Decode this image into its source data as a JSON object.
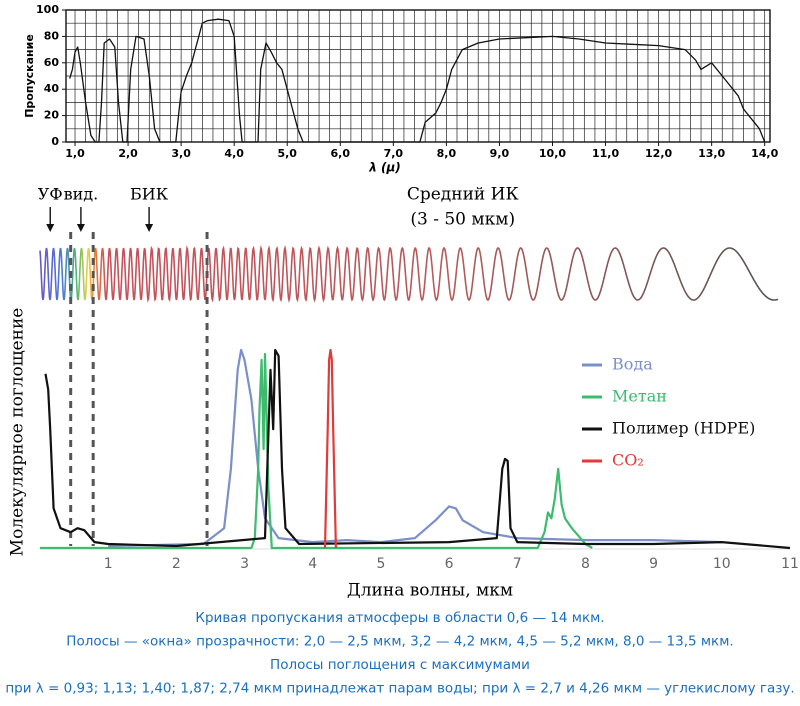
{
  "chart_data": [
    {
      "type": "line",
      "ylabel": "Пропускание",
      "xlabel": "λ (μ)",
      "xlim": [
        0.83,
        14.1
      ],
      "ylim": [
        0,
        100
      ],
      "xticks": [
        {
          "value": 1,
          "label": "1,0"
        },
        {
          "value": 2,
          "label": "2,0"
        },
        {
          "value": 3,
          "label": "3,0"
        },
        {
          "value": 4,
          "label": "4,0"
        },
        {
          "value": 5,
          "label": "5,0"
        },
        {
          "value": 6,
          "label": "6,0"
        },
        {
          "value": 7,
          "label": "7,0"
        },
        {
          "value": 8,
          "label": "8,0"
        },
        {
          "value": 9,
          "label": "9,0"
        },
        {
          "value": 10,
          "label": "10,0"
        },
        {
          "value": 11,
          "label": "11,0"
        },
        {
          "value": 12,
          "label": "12,0"
        },
        {
          "value": 13,
          "label": "13,0"
        },
        {
          "value": 14,
          "label": "14,0"
        }
      ],
      "yticks": [
        0,
        20,
        40,
        60,
        80,
        100
      ],
      "grid": true,
      "grid_step": {
        "x": 0.2,
        "y": 10
      },
      "series": [
        {
          "color": "#111111",
          "x": [
            0.9,
            0.95,
            1.0,
            1.05,
            1.1,
            1.2,
            1.3,
            1.38,
            1.45,
            1.5,
            1.55,
            1.65,
            1.75,
            1.82,
            1.9,
            1.98,
            2.05,
            2.15,
            2.3,
            2.4,
            2.5,
            2.6,
            2.9,
            2.95,
            3.0,
            3.1,
            3.2,
            3.3,
            3.4,
            3.5,
            3.7,
            3.9,
            4.0,
            4.1,
            4.15,
            4.45,
            4.5,
            4.6,
            4.7,
            4.8,
            4.9,
            5.0,
            5.1,
            5.2,
            5.3,
            7.5,
            7.6,
            7.8,
            7.9,
            8.0,
            8.1,
            8.3,
            8.6,
            9.0,
            9.5,
            10.0,
            10.5,
            11.0,
            11.5,
            12.0,
            12.5,
            12.7,
            12.8,
            13.0,
            13.2,
            13.3,
            13.5,
            13.6,
            13.8,
            13.9,
            14.0
          ],
          "values": [
            48,
            55,
            68,
            72,
            60,
            30,
            5,
            0,
            0,
            30,
            75,
            78,
            72,
            30,
            0,
            0,
            55,
            80,
            78,
            50,
            10,
            0,
            0,
            20,
            38,
            50,
            60,
            75,
            90,
            92,
            93,
            92,
            80,
            20,
            0,
            0,
            55,
            75,
            68,
            60,
            55,
            40,
            25,
            10,
            0,
            0,
            15,
            22,
            30,
            40,
            55,
            70,
            75,
            78,
            79,
            80,
            78,
            75,
            74,
            73,
            70,
            62,
            55,
            60,
            50,
            45,
            35,
            25,
            15,
            10,
            0
          ]
        }
      ]
    },
    {
      "type": "line",
      "ylabel": "Молекулярное поглощение",
      "xlabel": "Длина волны, мкм",
      "xlim": [
        0,
        11
      ],
      "ylim": [
        0,
        100
      ],
      "xticks": [
        1,
        2,
        3,
        4,
        5,
        6,
        7,
        8,
        9,
        10,
        11
      ],
      "legend": "upper right",
      "annotations": [
        {
          "text": "УФ",
          "x": 0.15
        },
        {
          "text": "вид.",
          "x": 0.6
        },
        {
          "text": "БИК",
          "x": 1.6
        },
        {
          "text": "Средний ИК",
          "x": 6.2
        },
        {
          "text": "(3 - 50 мкм)",
          "x": 6.2
        }
      ],
      "boundaries": [
        0.45,
        0.78,
        2.45
      ],
      "series": [
        {
          "name": "Вода",
          "color": "#7b8fc8",
          "x": [
            1.0,
            2.4,
            2.7,
            2.8,
            2.9,
            2.95,
            3.0,
            3.1,
            3.2,
            3.3,
            3.5,
            4.0,
            4.5,
            5.0,
            5.5,
            5.8,
            6.0,
            6.1,
            6.2,
            6.5,
            7.0,
            8.0,
            9.0,
            10.0
          ],
          "values": [
            1,
            2,
            10,
            40,
            90,
            100,
            95,
            75,
            40,
            15,
            5,
            3,
            4,
            3,
            5,
            14,
            21,
            20,
            14,
            8,
            5,
            4,
            4,
            3
          ]
        },
        {
          "name": "Метан",
          "color": "#3dbb6e",
          "x": [
            0.0,
            3.1,
            3.15,
            3.2,
            3.22,
            3.25,
            3.28,
            3.3,
            3.35,
            3.4,
            7.3,
            7.4,
            7.45,
            7.5,
            7.55,
            7.6,
            7.65,
            7.7,
            7.8,
            8.0,
            8.1
          ],
          "values": [
            0,
            0,
            5,
            40,
            70,
            95,
            50,
            98,
            30,
            0,
            0,
            8,
            18,
            15,
            25,
            40,
            22,
            15,
            10,
            2,
            0
          ]
        },
        {
          "name": "Полимер (HDPE)",
          "color": "#111111",
          "x": [
            0.08,
            0.12,
            0.15,
            0.2,
            0.3,
            0.45,
            0.55,
            0.65,
            0.8,
            1.0,
            2.0,
            3.3,
            3.38,
            3.42,
            3.45,
            3.5,
            3.55,
            3.6,
            3.8,
            6.0,
            6.7,
            6.78,
            6.82,
            6.86,
            6.9,
            7.0,
            8.0,
            9.0,
            10.0,
            11.0
          ],
          "values": [
            88,
            80,
            60,
            20,
            10,
            8,
            10,
            9,
            3,
            2,
            1,
            5,
            90,
            60,
            100,
            97,
            40,
            10,
            2,
            3,
            5,
            40,
            45,
            44,
            10,
            3,
            2,
            2,
            3,
            0
          ]
        },
        {
          "name": "CO₂",
          "color": "#e03a3a",
          "x": [
            4.18,
            4.22,
            4.24,
            4.26,
            4.28,
            4.3,
            4.34
          ],
          "values": [
            0,
            60,
            95,
            100,
            95,
            60,
            0
          ]
        }
      ]
    }
  ],
  "caption": [
    "Кривая пропускания атмосферы в области 0,6 — 14 мкм.",
    "Полосы — «окна» прозрачности: 2,0 — 2,5 мкм, 3,2 — 4,2 мкм, 4,5 — 5,2 мкм, 8,0 — 13,5 мкм.",
    "Полосы поглощения с максимумами",
    "при λ = 0,93; 1,13; 1,40; 1,87; 2,74 мкм принадлежат парам воды; при λ = 2,7 и 4,26 мкм — углекислому газу."
  ]
}
